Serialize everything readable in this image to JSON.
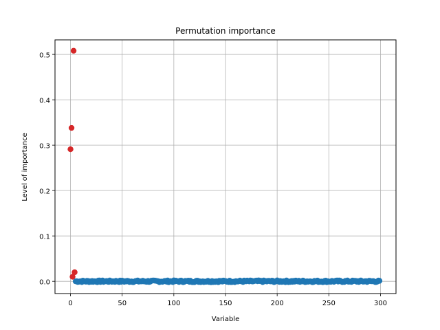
{
  "chart_data": {
    "type": "scatter",
    "title": "Permutation importance",
    "xlabel": "Variable",
    "ylabel": "Level of importance",
    "xlim": [
      -15,
      315
    ],
    "ylim": [
      -0.027,
      0.532
    ],
    "xticks": [
      0,
      50,
      100,
      150,
      200,
      250,
      300
    ],
    "yticks": [
      0.0,
      0.1,
      0.2,
      0.3,
      0.4,
      0.5
    ],
    "ytick_labels": [
      "0.0",
      "0.1",
      "0.2",
      "0.3",
      "0.4",
      "0.5"
    ],
    "grid": true,
    "series": [
      {
        "color": "#d62728",
        "points": [
          {
            "x": 0,
            "y": 0.291
          },
          {
            "x": 1,
            "y": 0.338
          },
          {
            "x": 2,
            "y": 0.01
          },
          {
            "x": 3,
            "y": 0.508
          },
          {
            "x": 4,
            "y": 0.02
          }
        ]
      },
      {
        "color": "#1f77b4",
        "x_start": 5,
        "x_end": 299,
        "y": 0.0,
        "noise": 0.002
      }
    ]
  }
}
